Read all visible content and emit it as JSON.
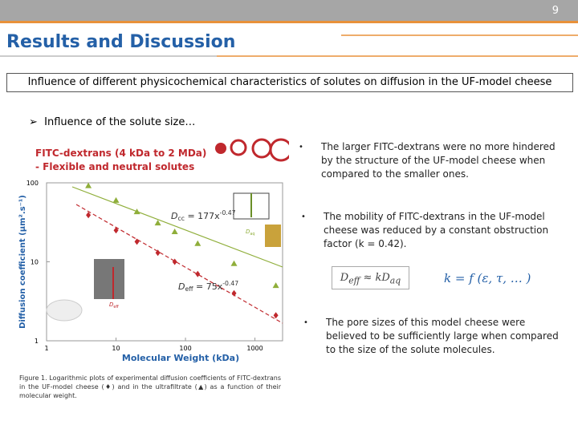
{
  "header": {
    "page_number": "9",
    "title": "Results and Discussion"
  },
  "banner": "Influence of different physicochemical characteristics of solutes on diffusion in the UF-model cheese",
  "section": "Influence of the solute size…",
  "figure": {
    "label_lines": [
      "FITC-dextrans (4 kDa to 2 MDa)",
      "- Flexible and neutral solutes"
    ],
    "chart_data": {
      "type": "scatter",
      "x_label": "Molecular Weight (kDa)",
      "y_label": "Diffusion coefficient (µm².s⁻¹)",
      "log_x": true,
      "log_y": true,
      "grid": false,
      "xlim": [
        1,
        2500
      ],
      "ylim": [
        1,
        100
      ],
      "xticks": [
        1,
        10,
        100,
        1000
      ],
      "yticks": [
        1,
        10,
        100
      ],
      "x": [
        4,
        10,
        20,
        40,
        70,
        150,
        500,
        2000
      ],
      "series": [
        {
          "color": "#8fae3a",
          "marker": "triangle",
          "values": [
            92,
            60,
            43,
            31,
            24,
            17,
            9.5,
            5
          ]
        },
        {
          "color": "#c0282d",
          "marker": "diamond",
          "values": [
            39,
            25,
            18,
            13,
            10,
            7,
            4,
            2.1
          ]
        }
      ],
      "annotations": [
        {
          "base": "D",
          "sub": "cc",
          "body": " = 177x",
          "sup": "-0.47"
        },
        {
          "base": "D",
          "sub": "eff",
          "body": " = 75x",
          "sup": "-0.47"
        },
        {
          "base": "D",
          "sub": "aq"
        },
        {
          "base": "D",
          "sub": "eff"
        }
      ]
    },
    "caption": "Figure 1. Logarithmic plots of experimental diffusion coefficients of FITC-dextrans in the UF-model cheese (♦) and in the ultrafiltrate (▲) as a function of their molecular weight."
  },
  "bullets": [
    "The larger FITC-dextrans were no more hindered by the structure of the UF-model cheese when compared to the smaller ones.",
    "The mobility of FITC-dextrans in the UF-model cheese was reduced by a constant obstruction factor (k = 0.42).",
    "The pore sizes of this model cheese were believed to be sufficiently large when compared to the size of the solute molecules."
  ],
  "formula": {
    "left": {
      "base": "D",
      "sub": "eff",
      "body": " ≈ kD",
      "sub2": "aq"
    },
    "right": "k = f (ε, τ, … )"
  }
}
